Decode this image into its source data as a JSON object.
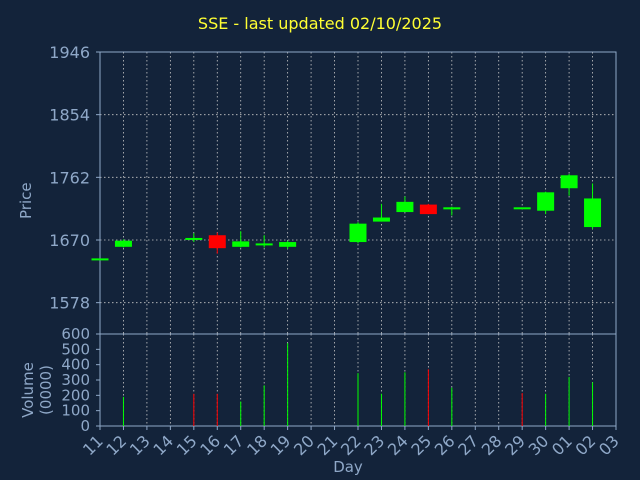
{
  "chart_data": [
    {
      "type": "candlestick",
      "title": "SSE - last updated 02/10/2025",
      "ylabel": "Price",
      "ylim": [
        1532,
        1946
      ],
      "yticks": [
        1578,
        1670,
        1762,
        1854,
        1946
      ],
      "xlabel": "Day",
      "xticks": [
        "11",
        "12",
        "13",
        "14",
        "15",
        "16",
        "17",
        "18",
        "19",
        "20",
        "21",
        "22",
        "23",
        "24",
        "25",
        "26",
        "27",
        "28",
        "29",
        "30",
        "01",
        "02",
        "03"
      ],
      "grid": true,
      "colors": {
        "up": "#00ff00",
        "down": "#ff0000"
      },
      "candles": [
        {
          "day": "11",
          "open": 1643,
          "high": 1643,
          "low": 1643,
          "close": 1643
        },
        {
          "day": "12",
          "open": 1660,
          "high": 1671,
          "low": 1659,
          "close": 1669
        },
        {
          "day": "15",
          "open": 1673,
          "high": 1680,
          "low": 1667,
          "close": 1673
        },
        {
          "day": "16",
          "open": 1677,
          "high": 1681,
          "low": 1650,
          "close": 1658
        },
        {
          "day": "17",
          "open": 1660,
          "high": 1683,
          "low": 1659,
          "close": 1668
        },
        {
          "day": "18",
          "open": 1665,
          "high": 1677,
          "low": 1659,
          "close": 1665
        },
        {
          "day": "19",
          "open": 1660,
          "high": 1669,
          "low": 1657,
          "close": 1667
        },
        {
          "day": "22",
          "open": 1667,
          "high": 1696,
          "low": 1665,
          "close": 1694
        },
        {
          "day": "23",
          "open": 1697,
          "high": 1723,
          "low": 1697,
          "close": 1703
        },
        {
          "day": "24",
          "open": 1711,
          "high": 1734,
          "low": 1711,
          "close": 1726
        },
        {
          "day": "25",
          "open": 1722,
          "high": 1723,
          "low": 1708,
          "close": 1708
        },
        {
          "day": "26",
          "open": 1715,
          "high": 1719,
          "low": 1706,
          "close": 1718
        },
        {
          "day": "29",
          "open": 1718,
          "high": 1718,
          "low": 1718,
          "close": 1718
        },
        {
          "day": "30",
          "open": 1713,
          "high": 1741,
          "low": 1708,
          "close": 1740
        },
        {
          "day": "01",
          "open": 1746,
          "high": 1767,
          "low": 1735,
          "close": 1765
        },
        {
          "day": "02",
          "open": 1689,
          "high": 1753,
          "low": 1686,
          "close": 1731
        }
      ]
    },
    {
      "type": "bar",
      "ylabel": "Volume (0000)",
      "ylim": [
        0,
        600
      ],
      "yticks": [
        0,
        100,
        200,
        300,
        400,
        500,
        600
      ],
      "xlabel": "Day",
      "bars": [
        {
          "day": "12",
          "value": 190,
          "direction": "up"
        },
        {
          "day": "15",
          "value": 210,
          "direction": "down"
        },
        {
          "day": "16",
          "value": 210,
          "direction": "down"
        },
        {
          "day": "17",
          "value": 160,
          "direction": "up"
        },
        {
          "day": "18",
          "value": 265,
          "direction": "up"
        },
        {
          "day": "19",
          "value": 540,
          "direction": "up"
        },
        {
          "day": "22",
          "value": 345,
          "direction": "up"
        },
        {
          "day": "23",
          "value": 210,
          "direction": "up"
        },
        {
          "day": "24",
          "value": 350,
          "direction": "up"
        },
        {
          "day": "25",
          "value": 370,
          "direction": "down"
        },
        {
          "day": "26",
          "value": 250,
          "direction": "up"
        },
        {
          "day": "29",
          "value": 215,
          "direction": "down"
        },
        {
          "day": "30",
          "value": 210,
          "direction": "up"
        },
        {
          "day": "01",
          "value": 320,
          "direction": "up"
        },
        {
          "day": "02",
          "value": 285,
          "direction": "up"
        }
      ]
    }
  ]
}
